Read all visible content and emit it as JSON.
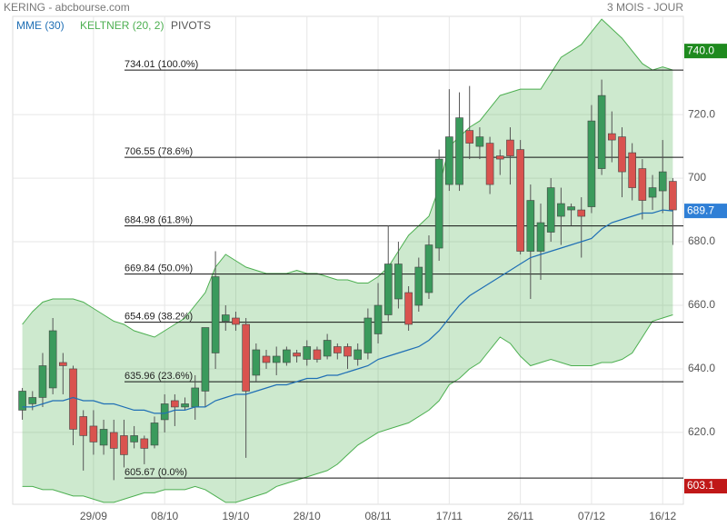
{
  "chart_data": {
    "type": "candlestick",
    "title": "KERING - abcbourse.com",
    "subtitle": "3 MOIS - JOUR",
    "categories": [
      null,
      null,
      null,
      null,
      null,
      null,
      null,
      "29/09",
      null,
      null,
      null,
      null,
      null,
      null,
      "08/10",
      null,
      null,
      null,
      null,
      null,
      null,
      "19/10",
      null,
      null,
      null,
      null,
      null,
      null,
      "28/10",
      null,
      null,
      null,
      null,
      null,
      null,
      "08/11",
      null,
      null,
      null,
      null,
      null,
      null,
      "17/11",
      null,
      null,
      null,
      null,
      null,
      null,
      "26/11",
      null,
      null,
      null,
      null,
      null,
      null,
      "07/12",
      null,
      null,
      null,
      null,
      null,
      null,
      "16/12",
      null
    ],
    "open": [
      627,
      629,
      631,
      634,
      642,
      640,
      625,
      622,
      616,
      620,
      619,
      617,
      618,
      616,
      624,
      630,
      628,
      628,
      633,
      645,
      655,
      656,
      654,
      638,
      644,
      642,
      642,
      645,
      643,
      646,
      644,
      647,
      647,
      643,
      645,
      651,
      657,
      662,
      664,
      660,
      664,
      678,
      698,
      698,
      715,
      710,
      711,
      707,
      712,
      709,
      677,
      677,
      683,
      688,
      690,
      690,
      691,
      703,
      714,
      713,
      708,
      703,
      694,
      696,
      699
    ],
    "high": [
      634,
      633,
      645,
      656,
      645,
      641,
      627,
      627,
      624,
      624,
      624,
      622,
      619,
      625,
      632,
      632,
      631,
      638,
      653,
      677,
      660,
      658,
      656,
      648,
      646,
      647,
      647,
      646,
      649,
      647,
      651,
      648,
      648,
      648,
      659,
      667,
      685,
      680,
      666,
      675,
      682,
      709,
      728,
      727,
      729,
      716,
      713,
      709,
      716,
      712,
      698,
      692,
      700,
      697,
      692,
      694,
      723,
      731,
      721,
      716,
      711,
      706,
      701,
      712,
      700
    ],
    "low": [
      624,
      627,
      628,
      632,
      632,
      616,
      608,
      613,
      613,
      605,
      609,
      615,
      610,
      615,
      620,
      622,
      627,
      624,
      628,
      640,
      652,
      652,
      612,
      636,
      640,
      638,
      641,
      642,
      641,
      642,
      643,
      643,
      640,
      641,
      643,
      648,
      655,
      659,
      652,
      658,
      662,
      674,
      696,
      696,
      706,
      706,
      695,
      701,
      698,
      676,
      662,
      668,
      680,
      679,
      685,
      675,
      689,
      701,
      705,
      694,
      693,
      687,
      690,
      689,
      679
    ],
    "close": [
      633,
      631,
      641,
      652,
      641,
      621,
      619,
      617,
      621,
      615,
      613,
      619,
      615,
      623,
      629,
      628,
      629,
      634,
      653,
      669,
      657,
      654,
      633,
      646,
      642,
      644,
      646,
      644,
      647,
      643,
      649,
      645,
      644,
      646,
      656,
      660,
      673,
      673,
      654,
      672,
      679,
      706,
      713,
      719,
      711,
      713,
      698,
      706,
      707,
      677,
      693,
      686,
      697,
      692,
      691,
      688,
      718,
      726,
      712,
      702,
      697,
      693,
      697,
      702,
      690
    ],
    "up_color": "#3a9a5c",
    "down_color": "#d9534f",
    "series": [
      {
        "name": "MME (30)",
        "color": "#1f6fb5",
        "values": [
          628,
          628,
          629,
          630,
          630,
          631,
          630,
          630,
          629,
          629,
          628,
          627,
          627,
          626,
          626,
          627,
          627,
          628,
          628,
          630,
          631,
          632,
          632,
          633,
          634,
          635,
          635,
          636,
          637,
          637,
          638,
          638,
          639,
          640,
          641,
          643,
          644,
          645,
          646,
          647,
          649,
          652,
          656,
          660,
          663,
          665,
          667,
          669,
          671,
          673,
          675,
          676,
          677,
          678,
          679,
          680,
          681,
          684,
          686,
          687,
          688,
          689,
          689,
          690,
          689.7
        ]
      },
      {
        "name": "KELTNER (20, 2)",
        "color": "#4caf50",
        "upper": [
          654,
          658,
          661,
          662,
          662,
          662,
          661,
          659,
          657,
          655,
          654,
          652,
          651,
          650,
          652,
          654,
          656,
          660,
          664,
          672,
          676,
          674,
          672,
          671,
          670,
          670,
          670,
          671,
          670,
          670,
          669,
          668,
          668,
          667,
          667,
          669,
          672,
          677,
          682,
          685,
          688,
          697,
          710,
          713,
          716,
          718,
          722,
          726,
          727,
          728,
          728,
          728,
          733,
          738,
          740,
          742,
          746,
          750,
          747,
          744,
          740,
          736,
          734,
          735,
          734
        ],
        "lower": [
          603,
          603,
          602,
          602,
          601,
          600,
          600,
          599,
          598,
          598,
          599,
          600,
          601,
          601,
          602,
          602,
          602,
          603,
          602,
          600,
          598,
          598,
          599,
          600,
          601,
          603,
          604,
          605,
          606,
          607,
          608,
          610,
          613,
          616,
          618,
          620,
          621,
          622,
          623,
          625,
          627,
          630,
          635,
          637,
          640,
          642,
          646,
          650,
          648,
          644,
          641,
          642,
          643,
          642,
          641,
          641,
          641,
          642,
          642,
          643,
          645,
          650,
          655,
          656,
          657
        ]
      }
    ],
    "pivots": {
      "name": "PIVOTS",
      "levels": [
        {
          "value": 734.01,
          "label": "734.01 (100.0%)"
        },
        {
          "value": 706.55,
          "label": "706.55 (78.6%)"
        },
        {
          "value": 684.98,
          "label": "684.98 (61.8%)"
        },
        {
          "value": 669.84,
          "label": "669.84 (50.0%)"
        },
        {
          "value": 654.69,
          "label": "654.69 (38.2%)"
        },
        {
          "value": 635.96,
          "label": "635.96 (23.6%)"
        },
        {
          "value": 605.67,
          "label": "605.67 (0.0%)"
        }
      ]
    },
    "price_tags": [
      {
        "value": 740.0,
        "label": "740.0",
        "color": "#1e8a1e"
      },
      {
        "value": 689.7,
        "label": "689.7",
        "color": "#2f7fd6"
      },
      {
        "value": 603.1,
        "label": "603.1",
        "color": "#c01818"
      }
    ],
    "ylim": [
      597.4,
      750.9
    ],
    "yticks": [
      {
        "value": 620,
        "label": "620.0"
      },
      {
        "value": 640,
        "label": "640.0"
      },
      {
        "value": 660,
        "label": "660.0"
      },
      {
        "value": 680,
        "label": "680.0"
      },
      {
        "value": 700,
        "label": "700"
      },
      {
        "value": 720,
        "label": "720.0"
      }
    ],
    "grid": true
  }
}
